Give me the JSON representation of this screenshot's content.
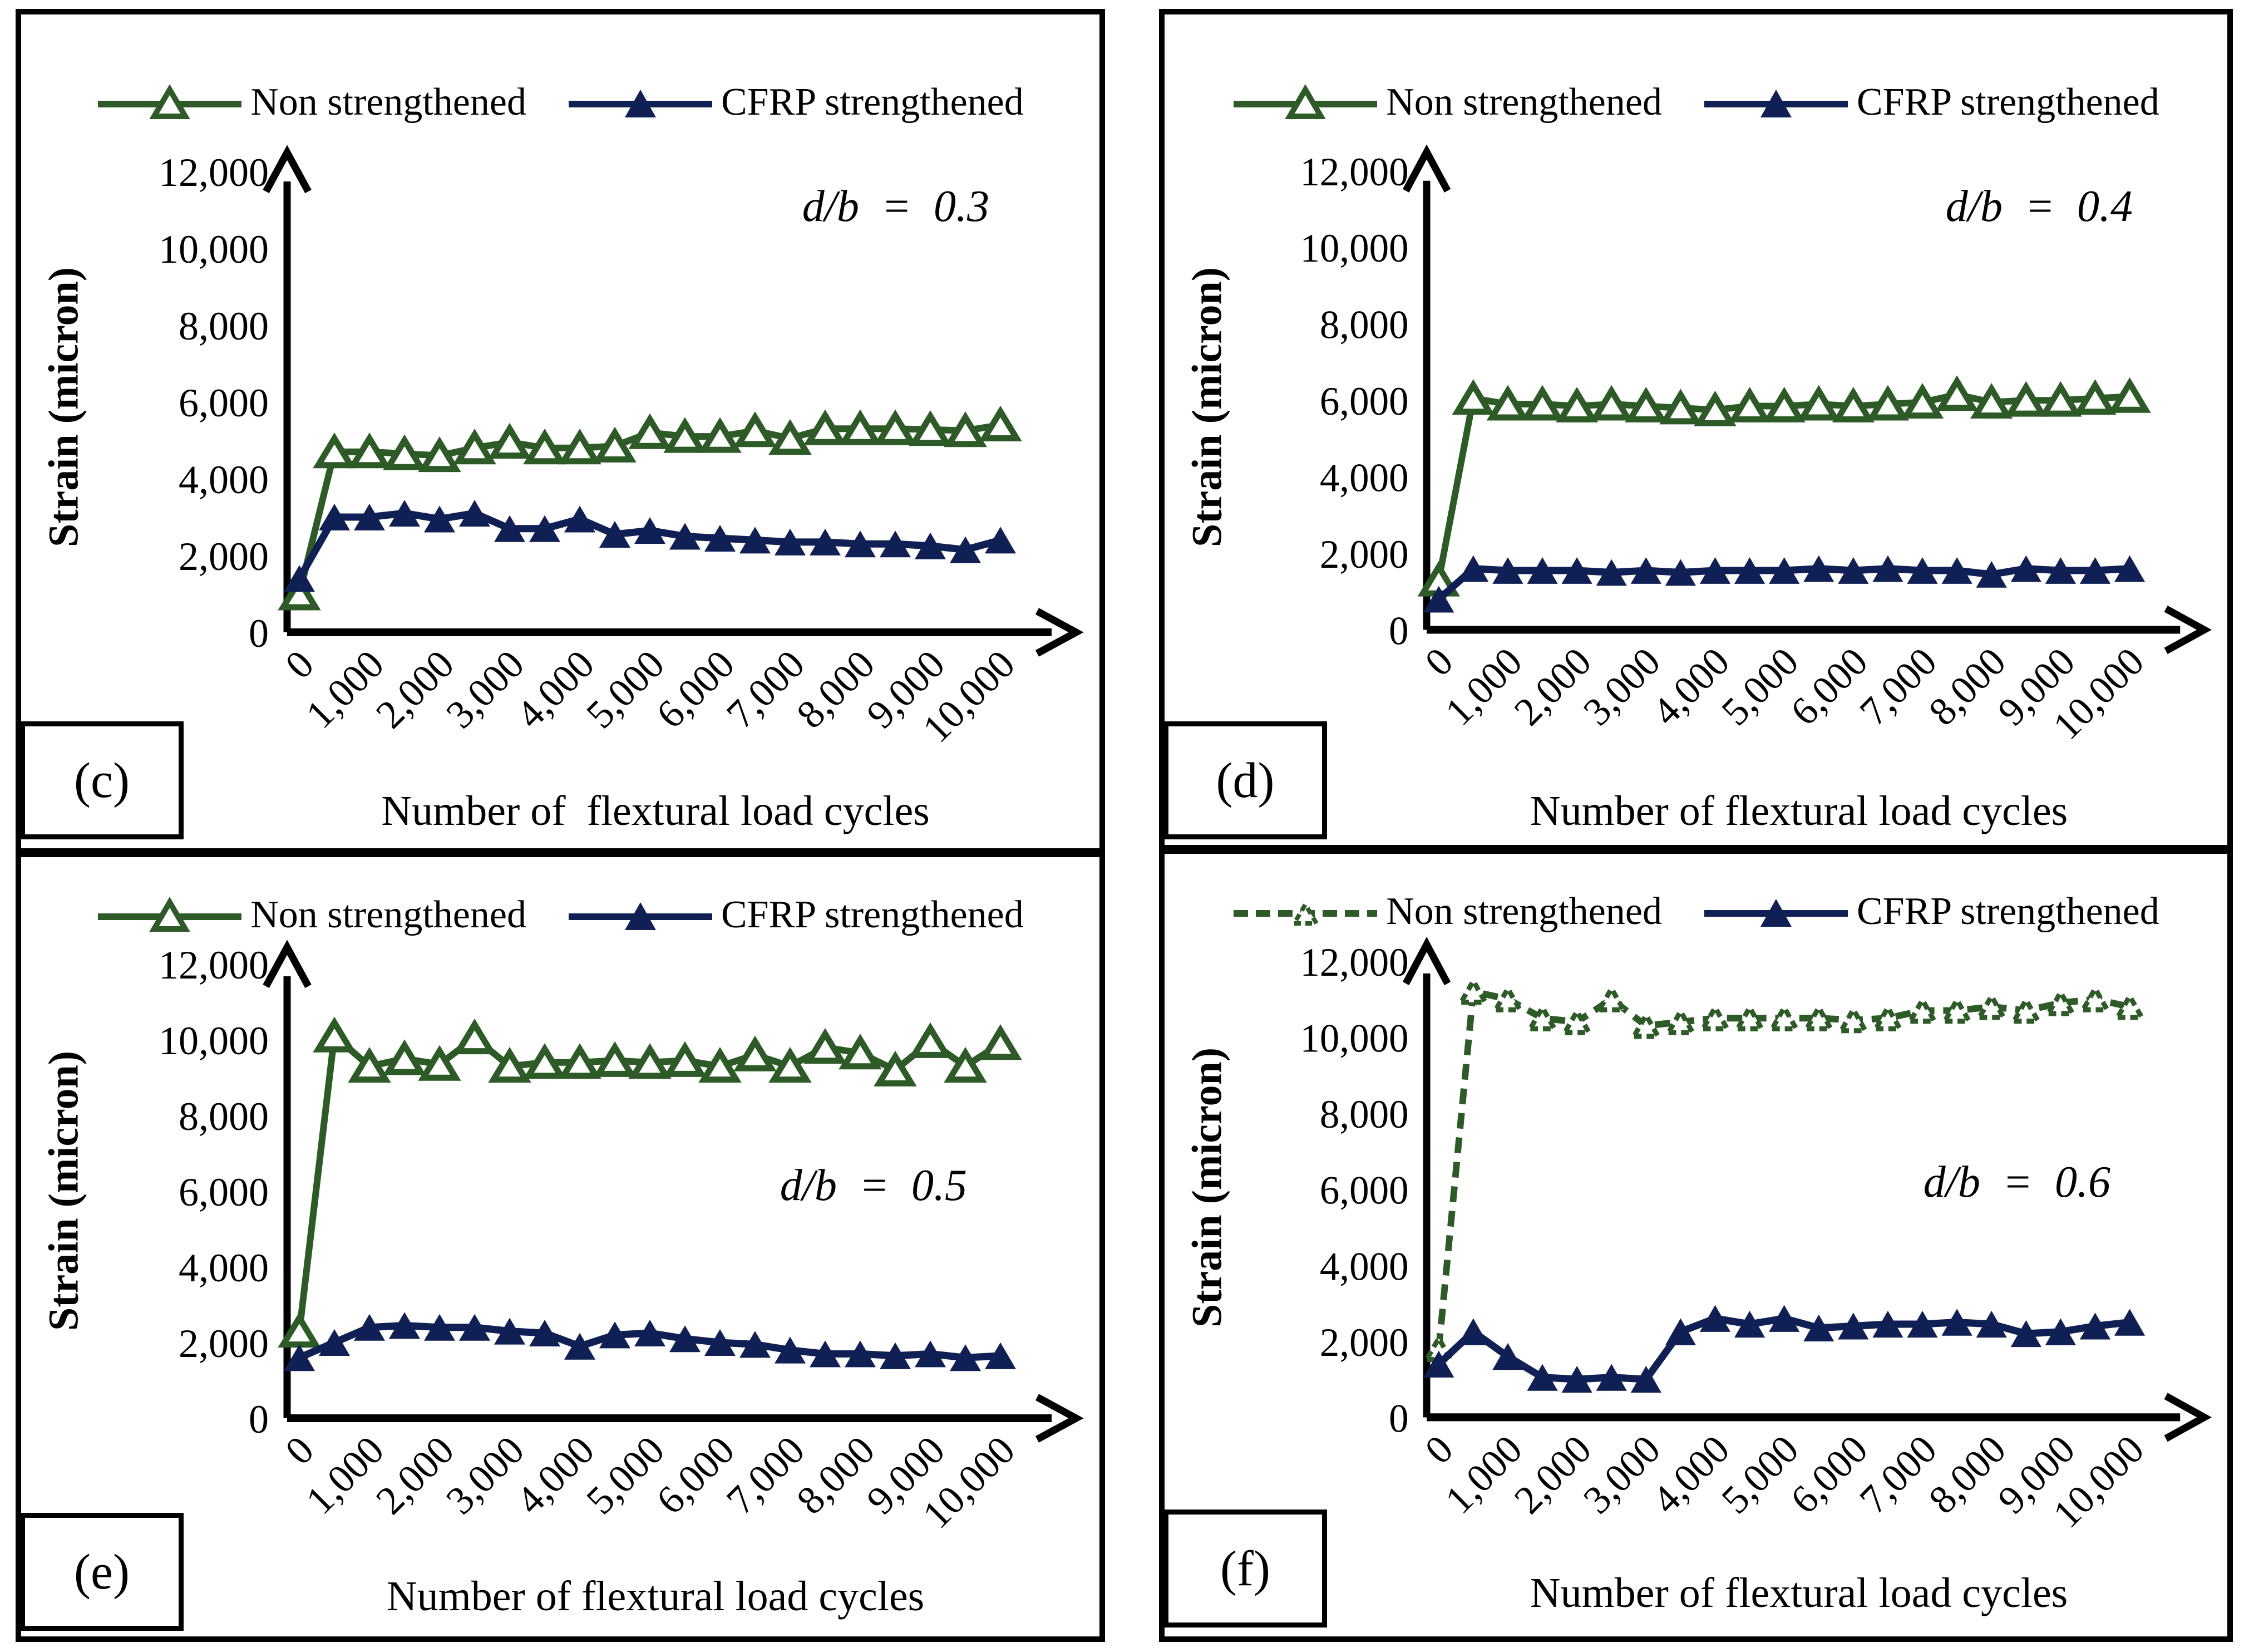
{
  "legend": {
    "non_label": "Non strengthened",
    "cfrp_label": "CFRP strengthened"
  },
  "colors": {
    "non_strengthened": "#2d5a27",
    "cfrp_strengthened": "#101f54",
    "axis": "#000000",
    "background": "#ffffff"
  },
  "y_axis": {
    "title": "Strain (micron)",
    "ticks": [
      "12,000",
      "10,000",
      "8,000",
      "6,000",
      "4,000",
      "2,000",
      "0"
    ],
    "min": 0,
    "max": 12000,
    "step": 2000
  },
  "x_axis": {
    "ticks": [
      "0",
      "1,000",
      "2,000",
      "3,000",
      "4,000",
      "5,000",
      "6,000",
      "7,000",
      "8,000",
      "9,000",
      "10,000"
    ],
    "min": 0,
    "max": 10000
  },
  "chart_data": [
    {
      "id": "c",
      "letter": "(c)",
      "type": "line",
      "annotation": "d/b  =  0.3",
      "x_title": "Number of  flextural load cycles",
      "ylabel": "Strain (micron)",
      "ylim": [
        0,
        12000
      ],
      "x": [
        0,
        500,
        1000,
        1500,
        2000,
        2500,
        3000,
        3500,
        4000,
        4500,
        5000,
        5500,
        6000,
        6500,
        7000,
        7500,
        8000,
        8500,
        9000,
        9500,
        10000
      ],
      "series": [
        {
          "name": "Non strengthened",
          "style": "open-triangle",
          "dashed": false,
          "values": [
            1000,
            4700,
            4700,
            4650,
            4600,
            4800,
            4950,
            4800,
            4800,
            4850,
            5200,
            5100,
            5100,
            5250,
            5050,
            5300,
            5300,
            5300,
            5280,
            5250,
            5400
          ]
        },
        {
          "name": "CFRP strengthened",
          "style": "filled-triangle",
          "dashed": false,
          "values": [
            1400,
            3000,
            3000,
            3100,
            2950,
            3100,
            2700,
            2700,
            2950,
            2550,
            2650,
            2500,
            2450,
            2400,
            2350,
            2350,
            2300,
            2300,
            2250,
            2150,
            2400
          ]
        }
      ]
    },
    {
      "id": "d",
      "letter": "(d)",
      "type": "line",
      "annotation": "d/b  =  0.4",
      "x_title": "Number of flextural load cycles",
      "ylabel": "Strain (micron)",
      "ylim": [
        0,
        12000
      ],
      "x": [
        0,
        500,
        1000,
        1500,
        2000,
        2500,
        3000,
        3500,
        4000,
        4500,
        5000,
        5500,
        6000,
        6500,
        7000,
        7500,
        8000,
        8500,
        9000,
        9500,
        10000
      ],
      "series": [
        {
          "name": "Non strengthened",
          "style": "open-triangle",
          "dashed": false,
          "values": [
            1300,
            6050,
            5900,
            5900,
            5850,
            5900,
            5850,
            5800,
            5750,
            5850,
            5850,
            5900,
            5850,
            5900,
            5950,
            6150,
            5950,
            6000,
            6000,
            6050,
            6100
          ]
        },
        {
          "name": "CFRP strengthened",
          "style": "filled-triangle",
          "dashed": false,
          "values": [
            800,
            1600,
            1550,
            1550,
            1550,
            1500,
            1550,
            1500,
            1550,
            1550,
            1550,
            1600,
            1550,
            1600,
            1550,
            1550,
            1450,
            1600,
            1550,
            1550,
            1600
          ]
        }
      ]
    },
    {
      "id": "e",
      "letter": "(e)",
      "type": "line",
      "annotation": "d/b  =  0.5",
      "x_title": "Number of flextural load cycles",
      "ylabel": "Strain (micron)",
      "ylim": [
        0,
        12000
      ],
      "x": [
        0,
        500,
        1000,
        1500,
        2000,
        2500,
        3000,
        3500,
        4000,
        4500,
        5000,
        5500,
        6000,
        6500,
        7000,
        7500,
        8000,
        8500,
        9000,
        9500,
        10000
      ],
      "series": [
        {
          "name": "Non strengthened",
          "style": "open-triangle",
          "dashed": false,
          "values": [
            2300,
            10100,
            9300,
            9500,
            9350,
            10050,
            9300,
            9400,
            9400,
            9450,
            9400,
            9450,
            9300,
            9600,
            9300,
            9800,
            9650,
            9200,
            9950,
            9300,
            9900
          ]
        },
        {
          "name": "CFRP strengthened",
          "style": "filled-triangle",
          "dashed": false,
          "values": [
            1600,
            2000,
            2400,
            2450,
            2400,
            2400,
            2300,
            2250,
            1900,
            2200,
            2250,
            2100,
            2000,
            1950,
            1800,
            1700,
            1700,
            1650,
            1700,
            1600,
            1650
          ]
        }
      ]
    },
    {
      "id": "f",
      "letter": "(f)",
      "type": "line",
      "annotation": "d/b  =  0.6",
      "x_title": "Number of flextural load cycles",
      "ylabel": "Strain (micron)",
      "ylim": [
        0,
        12000
      ],
      "x": [
        0,
        500,
        1000,
        1500,
        2000,
        2500,
        3000,
        3500,
        4000,
        4500,
        5000,
        5500,
        6000,
        6500,
        7000,
        7500,
        8000,
        8500,
        9000,
        9500,
        10000
      ],
      "series": [
        {
          "name": "Non strengthened",
          "style": "open-triangle",
          "dashed": true,
          "values": [
            1800,
            11200,
            11000,
            10500,
            10400,
            11000,
            10300,
            10400,
            10500,
            10500,
            10500,
            10500,
            10450,
            10500,
            10700,
            10700,
            10800,
            10700,
            10900,
            11000,
            10800
          ]
        },
        {
          "name": "CFRP strengthened",
          "style": "filled-triangle",
          "dashed": false,
          "values": [
            1400,
            2250,
            1600,
            1050,
            1000,
            1050,
            1000,
            2250,
            2600,
            2450,
            2600,
            2350,
            2400,
            2450,
            2450,
            2500,
            2450,
            2200,
            2250,
            2400,
            2500
          ]
        }
      ]
    }
  ]
}
